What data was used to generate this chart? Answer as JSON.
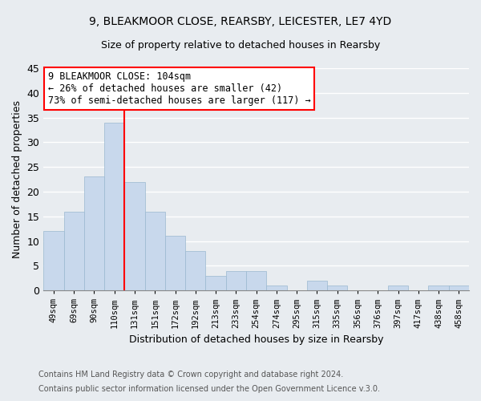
{
  "title": "9, BLEAKMOOR CLOSE, REARSBY, LEICESTER, LE7 4YD",
  "subtitle": "Size of property relative to detached houses in Rearsby",
  "xlabel": "Distribution of detached houses by size in Rearsby",
  "ylabel": "Number of detached properties",
  "bar_color": "#c8d8ec",
  "bar_edge_color": "#9ab8d0",
  "categories": [
    "49sqm",
    "69sqm",
    "90sqm",
    "110sqm",
    "131sqm",
    "151sqm",
    "172sqm",
    "192sqm",
    "213sqm",
    "233sqm",
    "254sqm",
    "274sqm",
    "295sqm",
    "315sqm",
    "335sqm",
    "356sqm",
    "376sqm",
    "397sqm",
    "417sqm",
    "438sqm",
    "458sqm"
  ],
  "values": [
    12,
    16,
    23,
    34,
    22,
    16,
    11,
    8,
    3,
    4,
    4,
    1,
    0,
    2,
    1,
    0,
    0,
    1,
    0,
    1,
    1
  ],
  "ylim": [
    0,
    45
  ],
  "yticks": [
    0,
    5,
    10,
    15,
    20,
    25,
    30,
    35,
    40,
    45
  ],
  "vline_x": 3.5,
  "vline_color": "red",
  "annotation_text": "9 BLEAKMOOR CLOSE: 104sqm\n← 26% of detached houses are smaller (42)\n73% of semi-detached houses are larger (117) →",
  "annotation_box_color": "white",
  "annotation_box_edge": "red",
  "footer1": "Contains HM Land Registry data © Crown copyright and database right 2024.",
  "footer2": "Contains public sector information licensed under the Open Government Licence v.3.0.",
  "background_color": "#e8ecf0",
  "grid_color": "white"
}
